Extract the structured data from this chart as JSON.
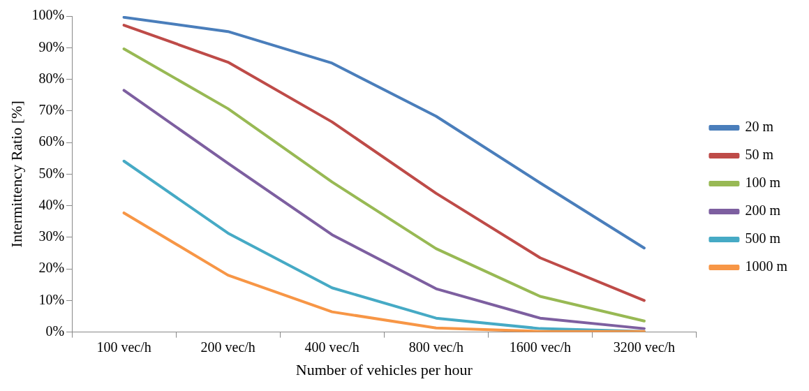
{
  "chart_data": {
    "type": "line",
    "xlabel": "Number of vehicles per hour",
    "ylabel": "Intermittency Ratio [%]",
    "categories": [
      "100 vec/h",
      "200 vec/h",
      "400 vec/h",
      "800 vec/h",
      "1600 vec/h",
      "3200 vec/h"
    ],
    "series": [
      {
        "name": "20 m",
        "color": "#4a7ebb",
        "values": [
          99.6,
          95.1,
          85.1,
          68.3,
          47.2,
          26.6
        ]
      },
      {
        "name": "50 m",
        "color": "#be4b48",
        "values": [
          97.1,
          85.4,
          66.5,
          43.9,
          23.5,
          10
        ]
      },
      {
        "name": "100 m",
        "color": "#98b954",
        "values": [
          89.6,
          70.7,
          47.5,
          26.4,
          11.3,
          3.5
        ]
      },
      {
        "name": "200 m",
        "color": "#7d5fa0",
        "values": [
          76.5,
          53.4,
          30.8,
          13.7,
          4.4,
          1.1
        ]
      },
      {
        "name": "500 m",
        "color": "#46aac5",
        "values": [
          54.1,
          31.3,
          14,
          4.4,
          1.1,
          0.2
        ]
      },
      {
        "name": "1000 m",
        "color": "#f79646",
        "values": [
          37.7,
          18,
          6.4,
          1.3,
          0.2,
          0.2
        ]
      }
    ],
    "ylim": [
      0,
      100
    ],
    "yticks": [
      {
        "value": 0,
        "label": "0%"
      },
      {
        "value": 10,
        "label": "10%"
      },
      {
        "value": 20,
        "label": "20%"
      },
      {
        "value": 30,
        "label": "30%"
      },
      {
        "value": 40,
        "label": "40%"
      },
      {
        "value": 50,
        "label": "50%"
      },
      {
        "value": 60,
        "label": "60%"
      },
      {
        "value": 70,
        "label": "70%"
      },
      {
        "value": 80,
        "label": "80%"
      },
      {
        "value": 90,
        "label": "90%"
      },
      {
        "value": 100,
        "label": "100%"
      }
    ],
    "grid": false,
    "legend": "right",
    "marker": "none",
    "line_style": "solid"
  }
}
